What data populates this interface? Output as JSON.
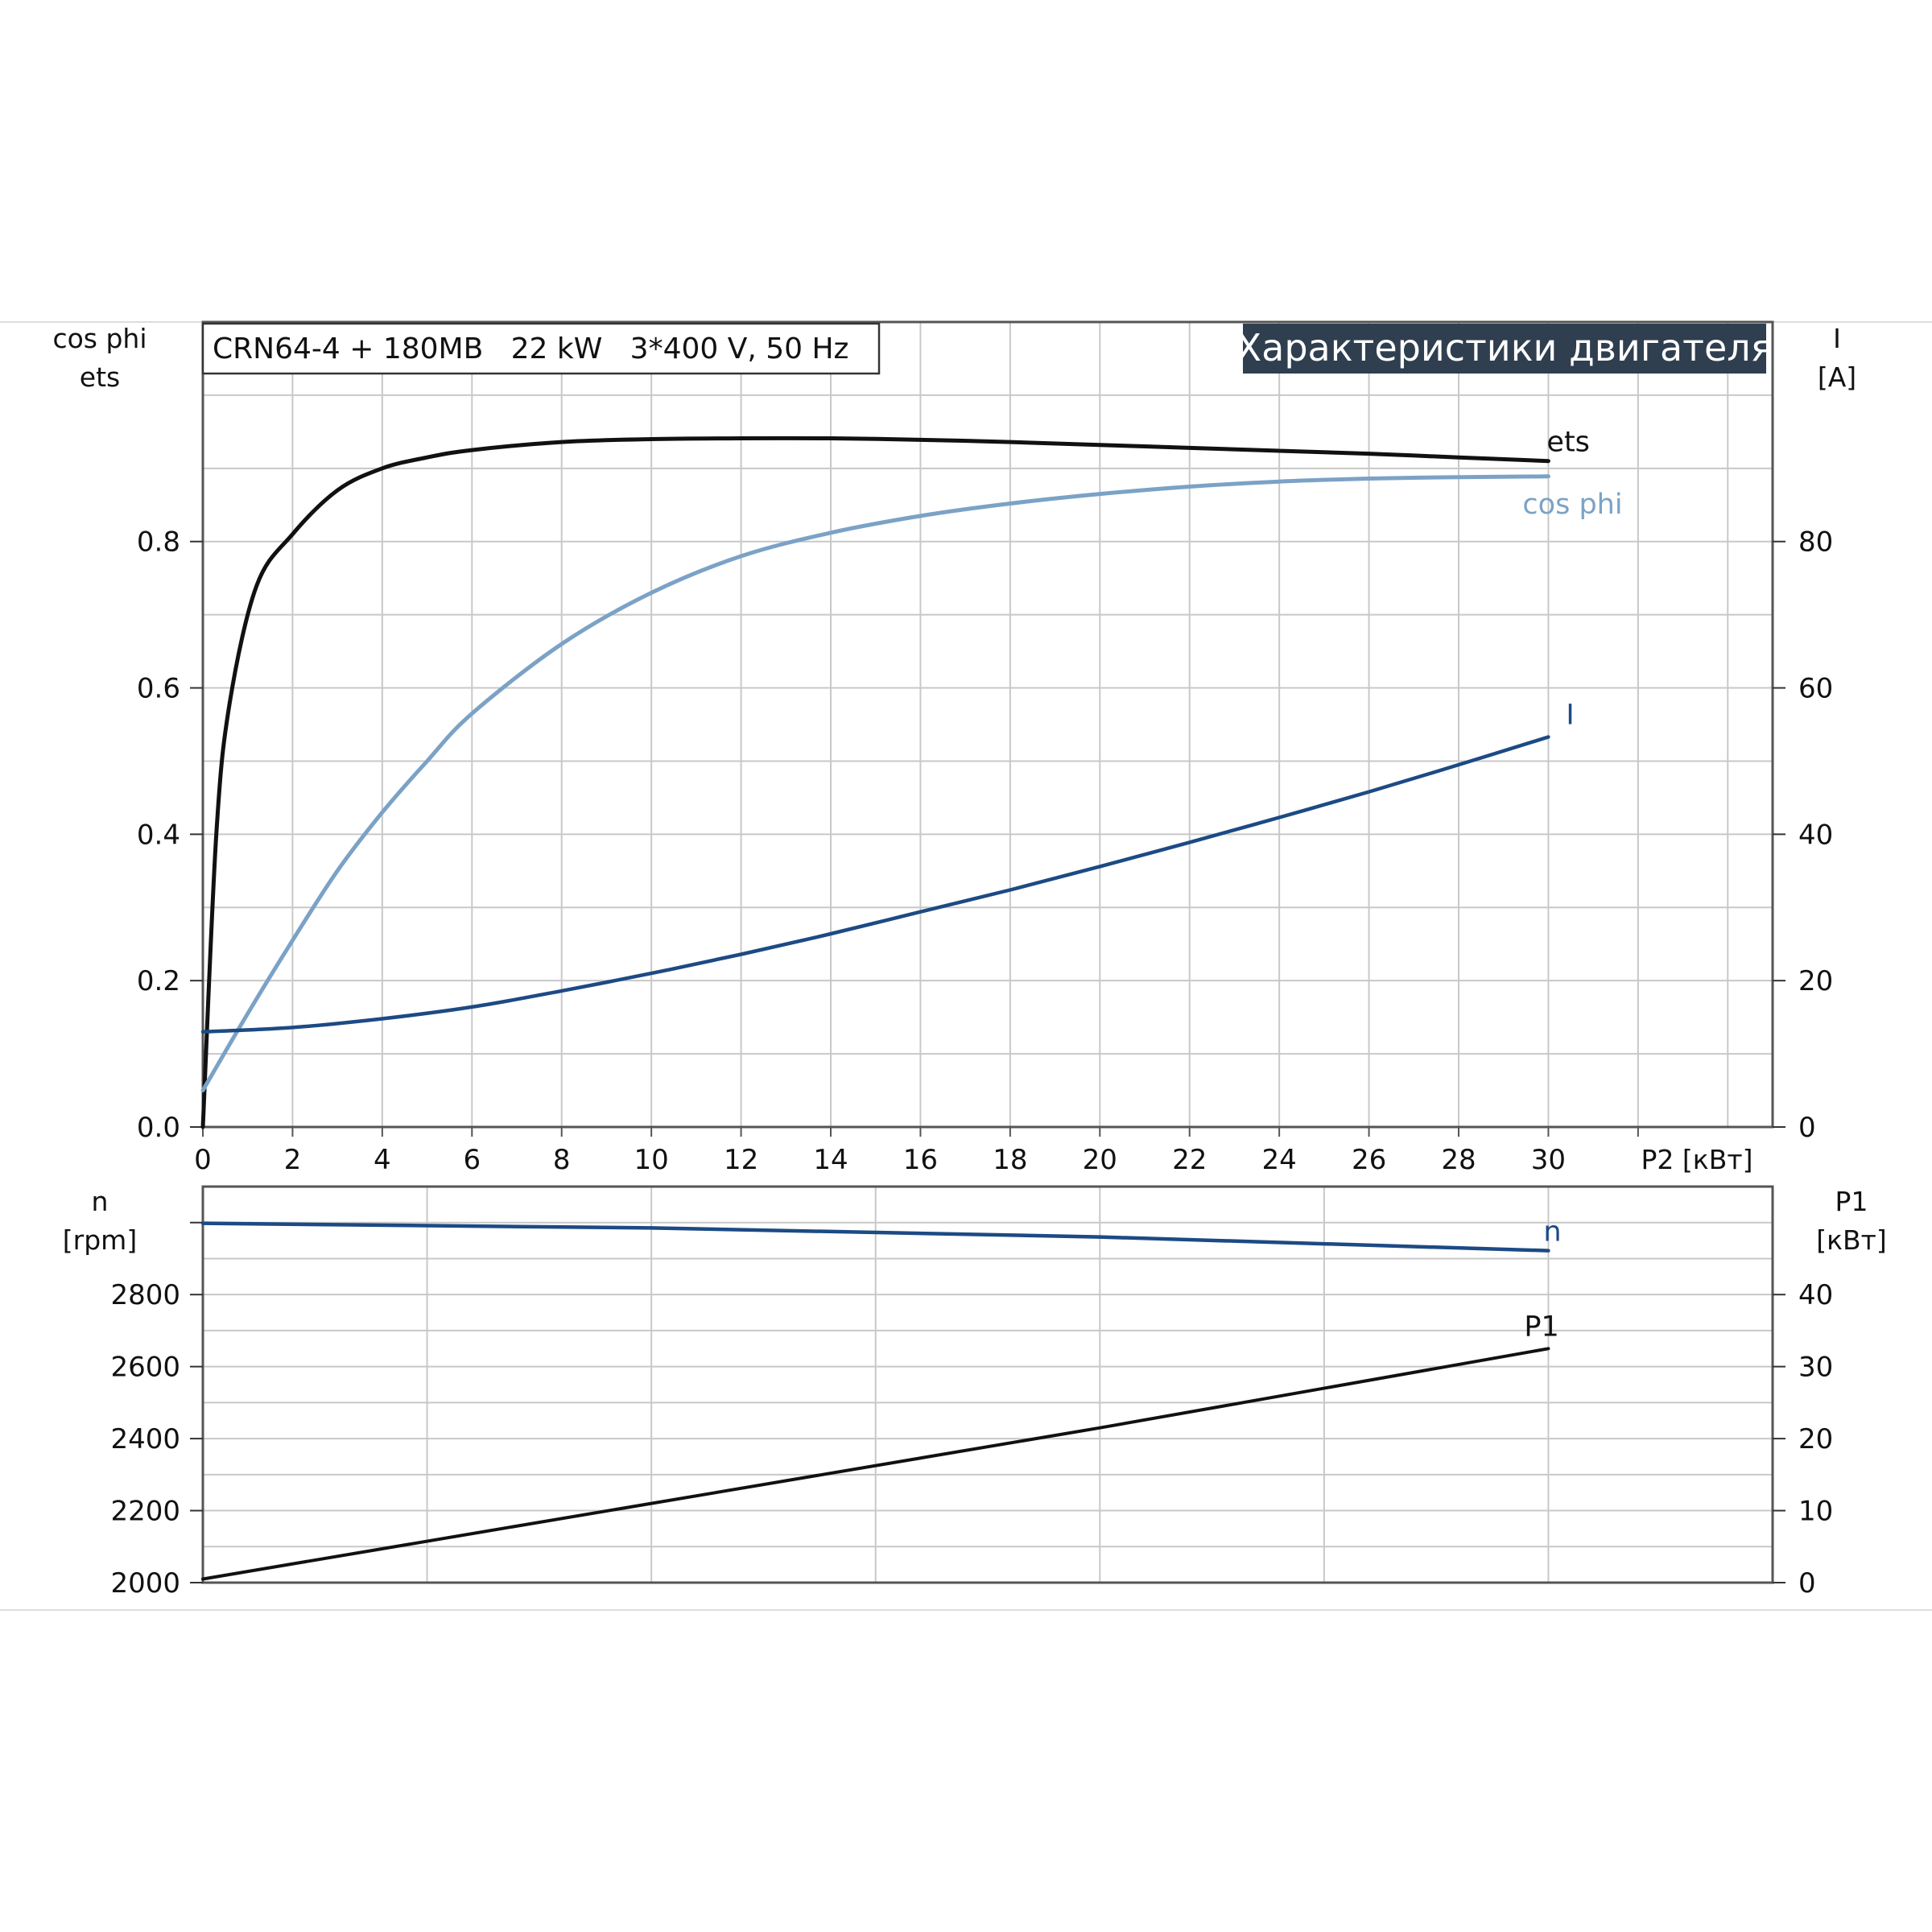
{
  "header": {
    "model_line": "CRN64-4 + 180MB   22 kW   3*400 V, 50 Hz",
    "badge": "Характеристики двигателя"
  },
  "colors": {
    "eta": "#111111",
    "cosphi": "#7ba2c6",
    "current": "#1c4a84",
    "speed": "#1c4a84",
    "p1": "#111111",
    "badge_bg": "#2f3f50"
  },
  "chart_data": [
    {
      "type": "line",
      "panel": "top",
      "xlabel": "P2 [кВт]",
      "xlim": [
        0,
        35
      ],
      "xticks": [
        "0",
        "2",
        "4",
        "6",
        "8",
        "10",
        "12",
        "14",
        "16",
        "18",
        "20",
        "22",
        "24",
        "26",
        "28",
        "30"
      ],
      "left_axis": {
        "label_lines": [
          "cos phi",
          "ets"
        ],
        "ylim": [
          0,
          1.1
        ],
        "ticks": [
          "0.0",
          "0.2",
          "0.4",
          "0.6",
          "0.8"
        ]
      },
      "right_axis": {
        "label_lines": [
          "I",
          "[A]"
        ],
        "ylim": [
          0,
          110
        ],
        "ticks": [
          "0",
          "20",
          "40",
          "60",
          "80"
        ]
      },
      "grid": true,
      "series": [
        {
          "name": "ets",
          "axis": "left",
          "x": [
            0,
            0.3,
            0.6,
            1.2,
            2,
            3,
            4,
            5,
            6,
            8,
            10,
            12,
            14,
            16,
            18,
            20,
            22,
            24,
            26,
            28,
            30
          ],
          "y": [
            0.0,
            0.4,
            0.58,
            0.74,
            0.81,
            0.87,
            0.9,
            0.915,
            0.925,
            0.936,
            0.94,
            0.941,
            0.941,
            0.939,
            0.936,
            0.932,
            0.928,
            0.924,
            0.92,
            0.915,
            0.91
          ]
        },
        {
          "name": "cos phi",
          "axis": "left",
          "x": [
            0,
            1,
            2,
            3,
            4,
            5,
            6,
            8,
            10,
            12,
            14,
            16,
            18,
            20,
            22,
            24,
            26,
            28,
            30
          ],
          "y": [
            0.05,
            0.155,
            0.255,
            0.35,
            0.43,
            0.5,
            0.565,
            0.66,
            0.73,
            0.78,
            0.812,
            0.835,
            0.852,
            0.865,
            0.875,
            0.882,
            0.886,
            0.888,
            0.889
          ]
        },
        {
          "name": "I",
          "axis": "right",
          "x": [
            0,
            2,
            4,
            6,
            8,
            10,
            12,
            14,
            16,
            18,
            20,
            22,
            24,
            26,
            28,
            30
          ],
          "y": [
            13.0,
            13.6,
            14.8,
            16.4,
            18.6,
            21.0,
            23.6,
            26.4,
            29.4,
            32.4,
            35.6,
            38.9,
            42.3,
            45.8,
            49.5,
            53.3
          ]
        }
      ]
    },
    {
      "type": "line",
      "panel": "bottom",
      "xlim": [
        0,
        35
      ],
      "left_axis": {
        "label_lines": [
          "n",
          "[rpm]"
        ],
        "ylim": [
          2000,
          3100
        ],
        "ticks": [
          "2000",
          "2200",
          "2400",
          "2600",
          "2800"
        ]
      },
      "right_axis": {
        "label_lines": [
          "P1",
          "[кВт]"
        ],
        "ylim": [
          0,
          55
        ],
        "ticks": [
          "0",
          "10",
          "20",
          "30",
          "40"
        ]
      },
      "grid": true,
      "series": [
        {
          "name": "n",
          "axis": "left",
          "x": [
            0,
            10,
            20,
            30
          ],
          "y": [
            2998,
            2985,
            2960,
            2922
          ]
        },
        {
          "name": "P1",
          "axis": "right",
          "x": [
            0,
            10,
            20,
            30
          ],
          "y": [
            0.5,
            11.0,
            21.5,
            32.5
          ]
        }
      ]
    }
  ]
}
